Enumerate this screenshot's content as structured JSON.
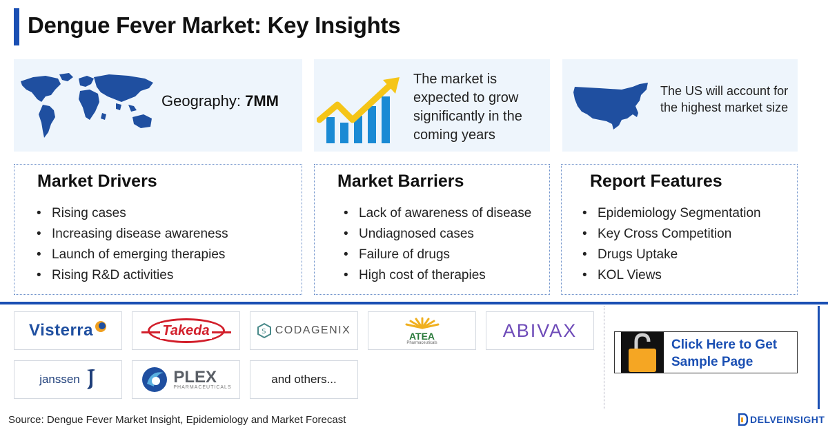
{
  "header": {
    "title": "Dengue Fever Market: Key Insights"
  },
  "insights": {
    "geography_label": "Geography:",
    "geography_value": "7MM",
    "growth_text": "The market is expected to grow significantly in the coming years",
    "us_text": "The US will account for the highest market size",
    "icons": [
      "world-map-icon",
      "growth-chart-icon",
      "us-map-icon"
    ]
  },
  "drivers": {
    "title": "Market Drivers",
    "items": [
      "Rising cases",
      "Increasing disease awareness",
      "Launch of emerging therapies",
      "Rising R&D activities"
    ]
  },
  "barriers": {
    "title": "Market Barriers",
    "items": [
      "Lack of awareness of disease",
      "Undiagnosed cases",
      "Failure of drugs",
      "High cost of therapies"
    ]
  },
  "features": {
    "title": "Report Features",
    "items": [
      "Epidemiology Segmentation",
      "Key Cross Competition",
      "Drugs Uptake",
      "KOL Views"
    ]
  },
  "companies": {
    "visterra": "Visterra",
    "takeda": "Takeda",
    "codagenix": "CODAGENIX",
    "atea": "ATEA",
    "atea_sub": "Pharmaceuticals",
    "abivax": "ABIVAX",
    "janssen": "janssen",
    "plex": "PLEX",
    "plex_sub": "PHARMACEUTICALS",
    "others": "and others..."
  },
  "cta": {
    "label": "Click Here to Get Sample Page"
  },
  "footer": {
    "source": "Source: Dengue Fever Market Insight, Epidemiology and Market Forecast",
    "brand": "DELVEINSIGHT"
  },
  "colors": {
    "accent": "#1a4fb3",
    "card_bg": "#eef5fc",
    "arrow": "#f5c518",
    "bars": "#1a8ad4",
    "lock": "#f5a623"
  }
}
